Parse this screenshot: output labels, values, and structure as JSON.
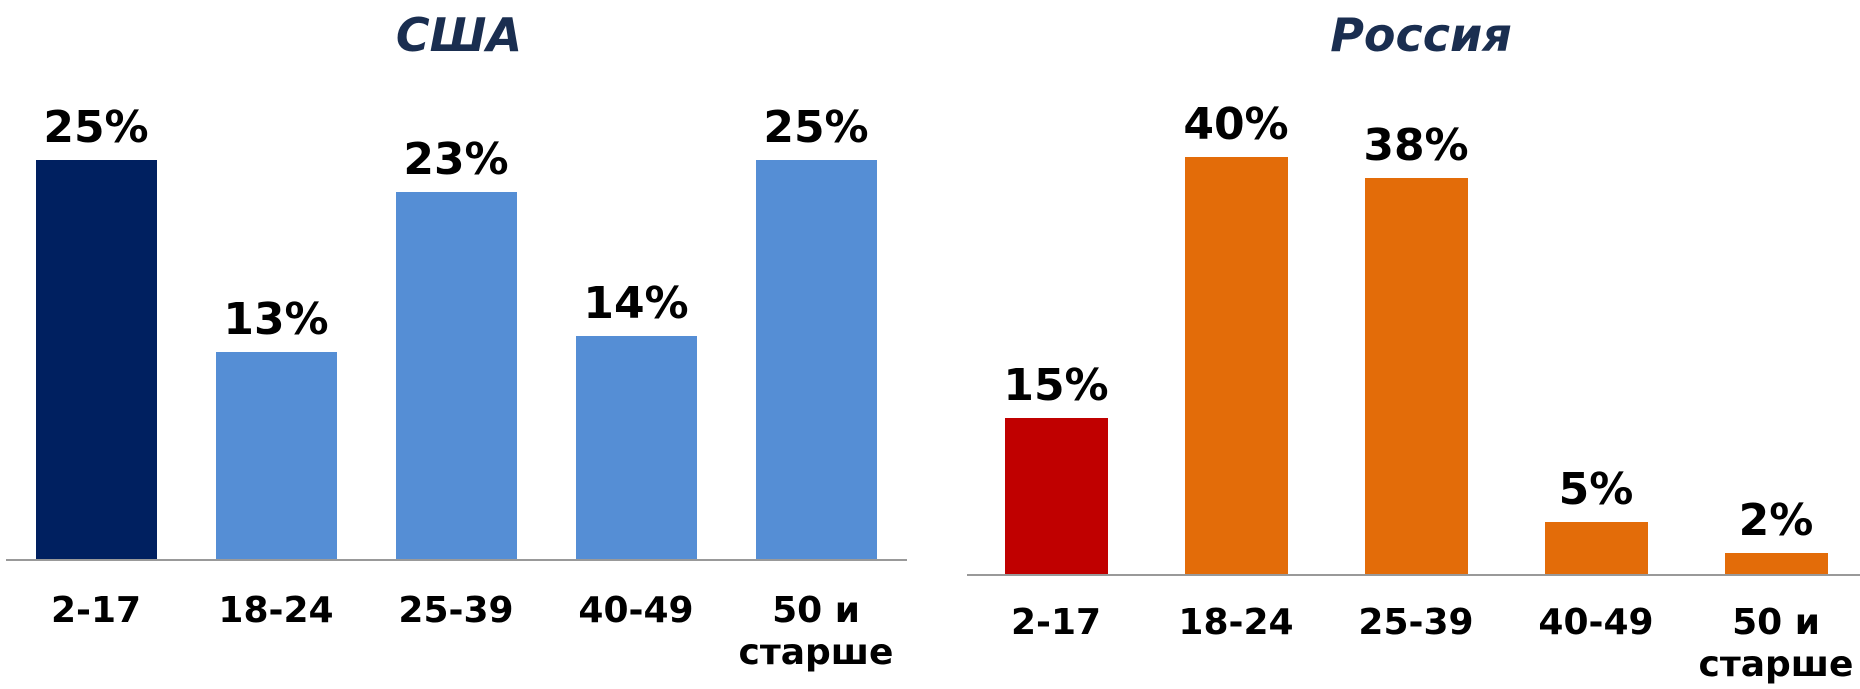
{
  "chart_data": [
    {
      "type": "bar",
      "title": "США",
      "categories": [
        "2-17",
        "18-24",
        "25-39",
        "40-49",
        "50 и старше"
      ],
      "values": [
        25,
        13,
        23,
        14,
        25
      ],
      "value_labels": [
        "25%",
        "13%",
        "23%",
        "14%",
        "25%"
      ],
      "colors": [
        "#002060",
        "#558ed5",
        "#558ed5",
        "#558ed5",
        "#558ed5"
      ]
    },
    {
      "type": "bar",
      "title": "Россия",
      "categories": [
        "2-17",
        "18-24",
        "25-39",
        "40-49",
        "50 и старше"
      ],
      "values": [
        15,
        40,
        38,
        5,
        2
      ],
      "value_labels": [
        "15%",
        "40%",
        "38%",
        "5%",
        "2%"
      ],
      "colors": [
        "#c00000",
        "#e36c09",
        "#e36c09",
        "#e36c09",
        "#e36c09"
      ]
    }
  ]
}
